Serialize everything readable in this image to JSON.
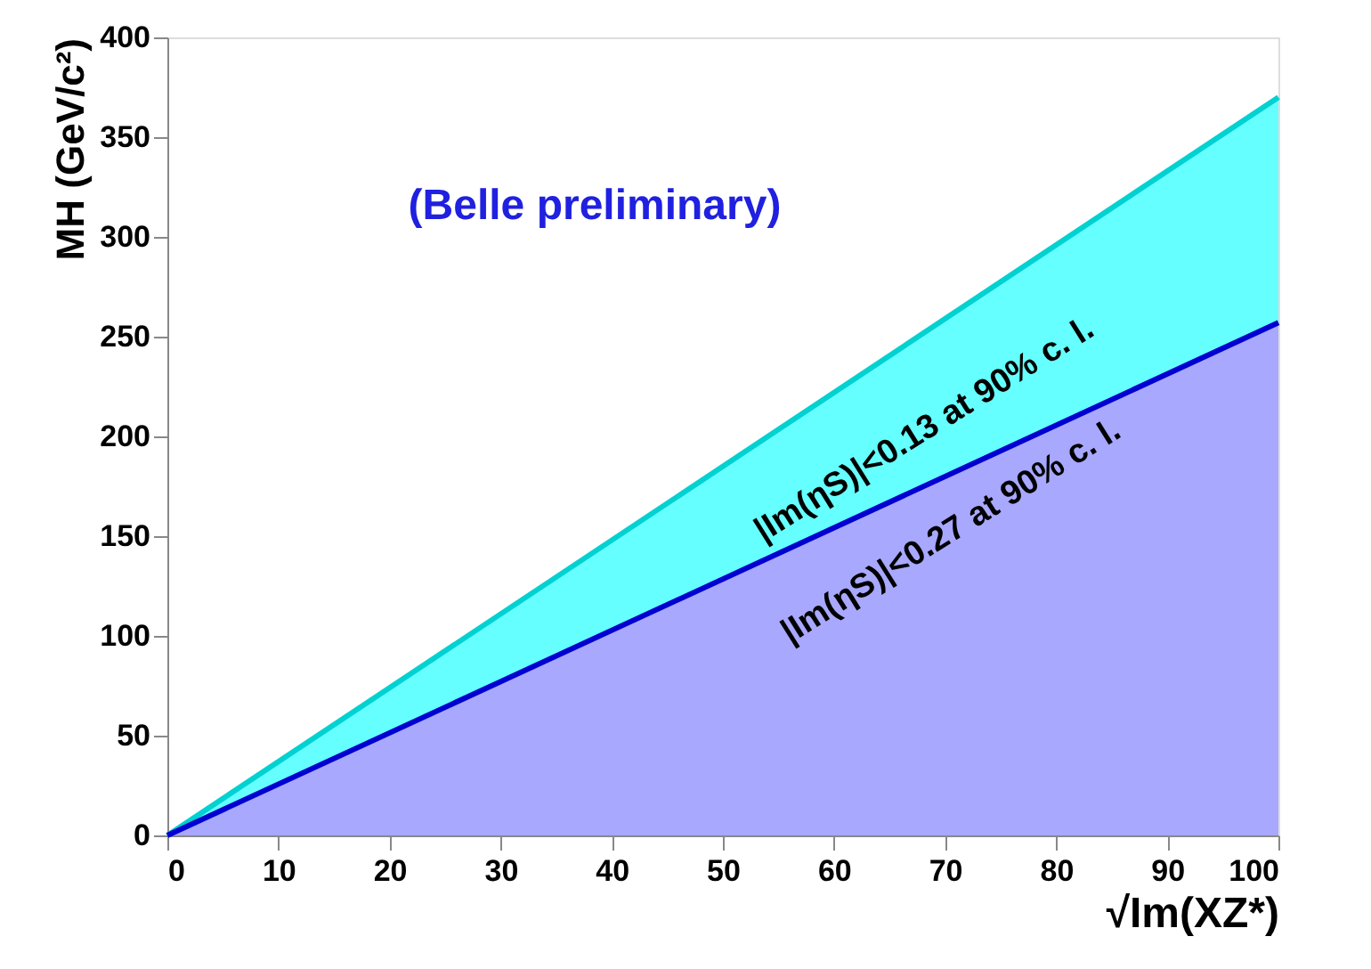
{
  "chart_data": {
    "type": "area",
    "x": [
      0,
      100
    ],
    "series": [
      {
        "color": "#66ffff",
        "values": [
          0,
          370
        ]
      },
      {
        "color": "#a8a8ff",
        "values": [
          0,
          257
        ]
      }
    ],
    "xlabel": "√Im(XZ*)",
    "ylabel": "MH (GeV/c²)",
    "xlim": [
      0,
      100
    ],
    "ylim": [
      0,
      400
    ],
    "xticks": [
      0,
      10,
      20,
      30,
      40,
      50,
      60,
      70,
      80,
      90,
      100
    ],
    "yticks": [
      0,
      50,
      100,
      150,
      200,
      250,
      300,
      350,
      400
    ],
    "grid": false,
    "annotations": [
      "(Belle preliminary)",
      "|Im(ηS)|<0.13 at 90% c. l.",
      "|Im(ηS)|<0.27 at 90% c. l."
    ]
  }
}
